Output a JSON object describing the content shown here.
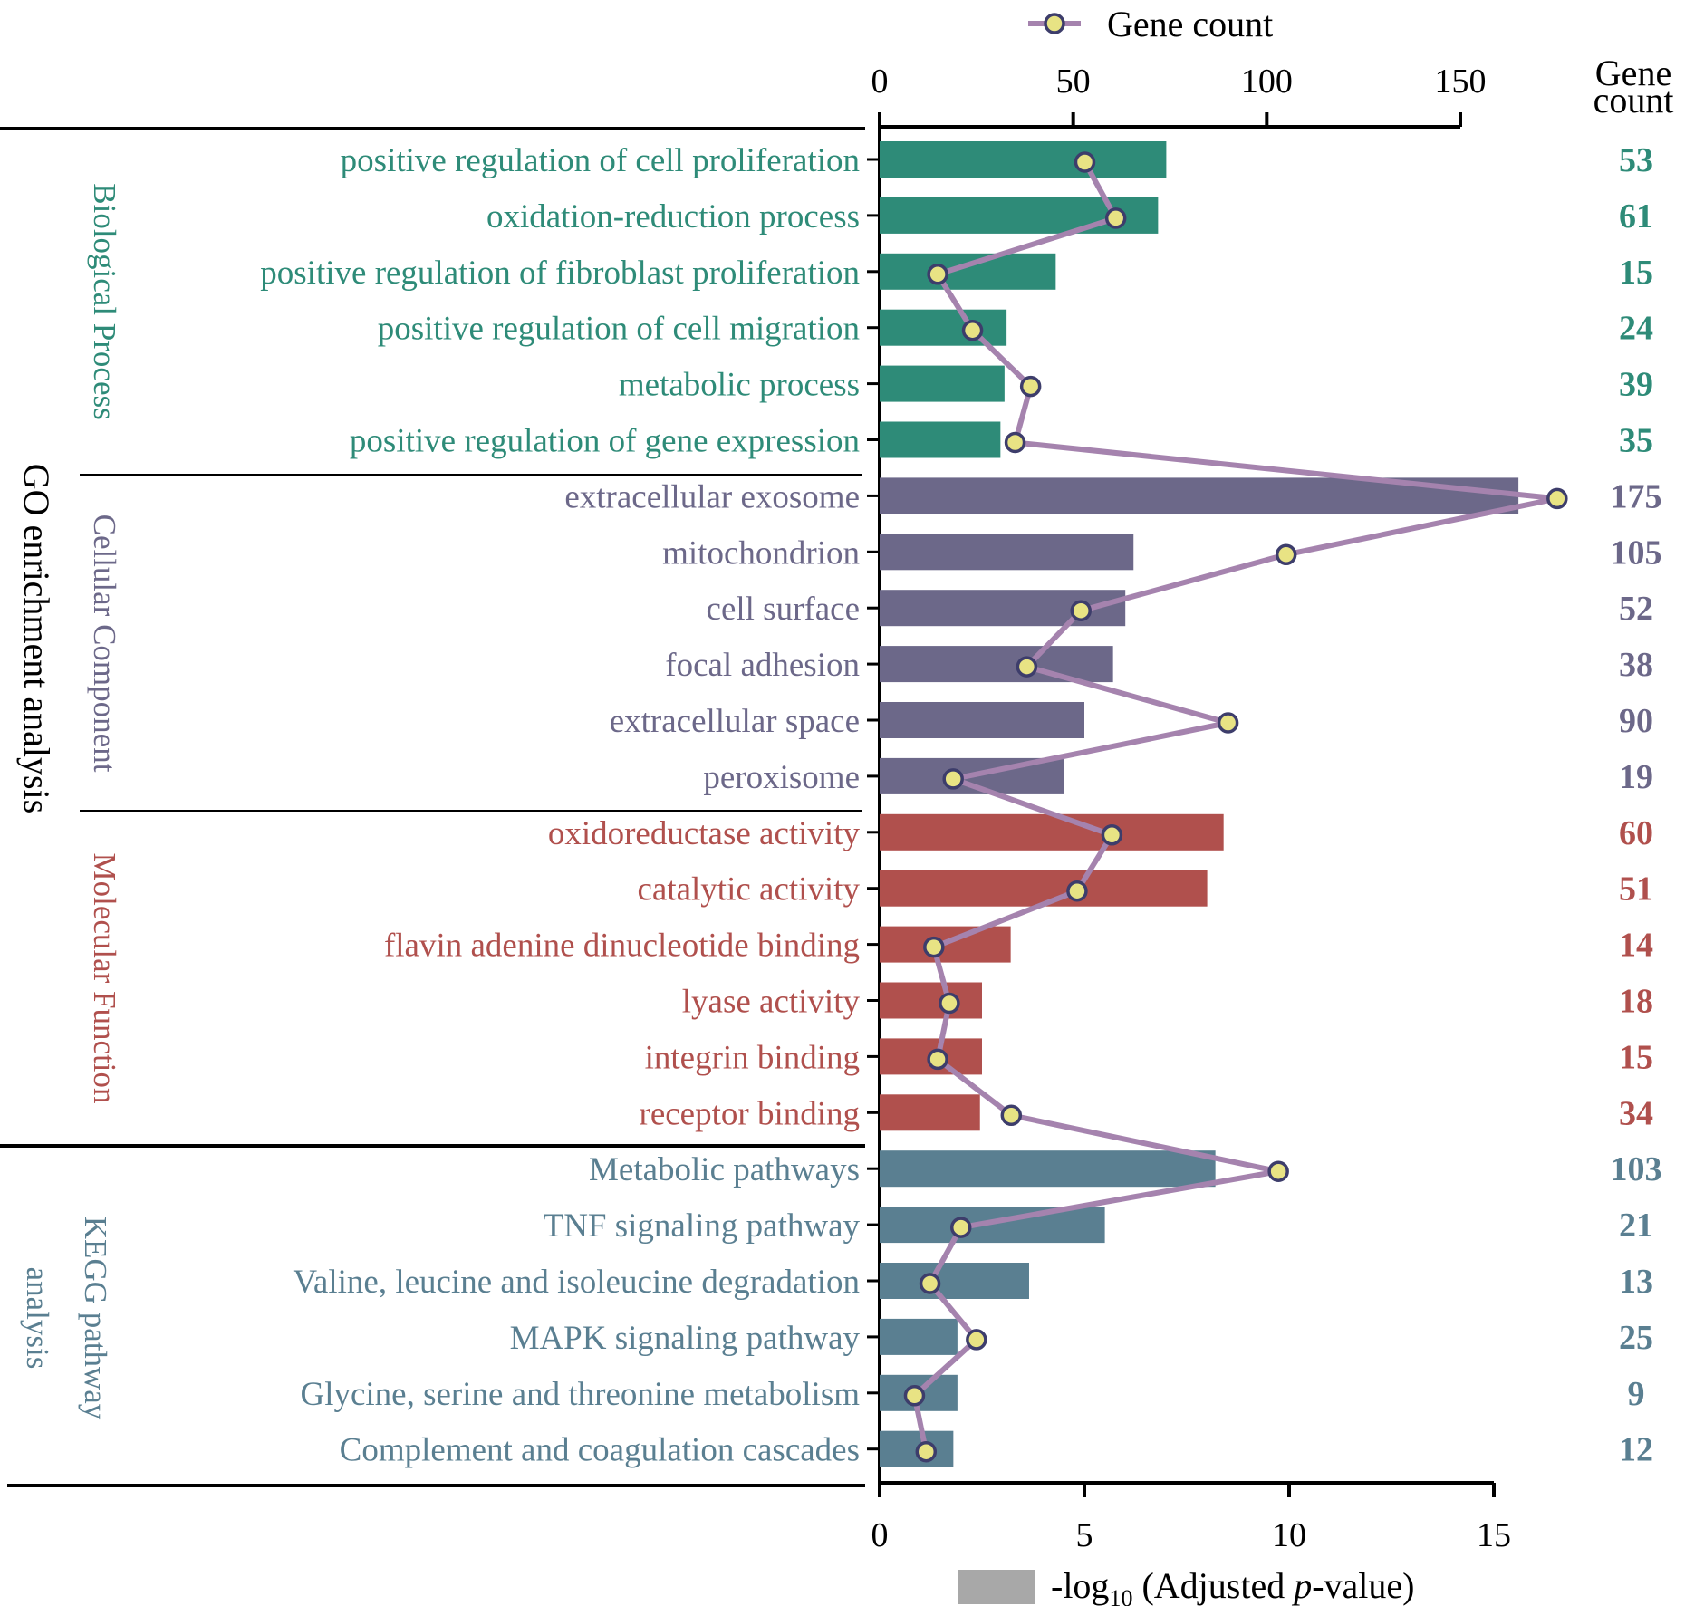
{
  "colors": {
    "bp": "#2e8b78",
    "cc": "#6c6889",
    "mf": "#b0504d",
    "kegg": "#5a7f91",
    "line": "#a583ae",
    "marker_fill": "#e8e384",
    "marker_stroke": "#3d3d6b",
    "legend_bar": "#a8a8a8"
  },
  "chart_data": {
    "type": "bar",
    "orientation": "horizontal",
    "legend_top": {
      "label": "Gene count",
      "marker": "circle-on-line"
    },
    "legend_bottom": {
      "label_pre": "-log",
      "label_sub": "10",
      "label_mid": " (Adjusted ",
      "label_italic": "p",
      "label_post": "-value)"
    },
    "count_header": [
      "Gene",
      "count"
    ],
    "top_axis": {
      "label": "Gene count",
      "range": [
        0,
        150
      ],
      "ticks": [
        "0",
        "50",
        "100",
        "150"
      ]
    },
    "bottom_axis": {
      "label": "-log10 (Adjusted p-value)",
      "range": [
        0,
        15
      ],
      "ticks": [
        "0",
        "5",
        "10",
        "15"
      ]
    },
    "outer_labels": {
      "go": "GO enrichment analysis",
      "kegg": [
        "KEGG pathway",
        "analysis"
      ]
    },
    "groups": [
      {
        "name": "Biological Process",
        "key": "bp",
        "terms": [
          {
            "term": "positive regulation of cell proliferation",
            "neglog10p": 7.0,
            "count": 53
          },
          {
            "term": "oxidation-reduction process",
            "neglog10p": 6.8,
            "count": 61
          },
          {
            "term": "positive regulation of fibroblast proliferation",
            "neglog10p": 4.3,
            "count": 15
          },
          {
            "term": "positive regulation of cell migration",
            "neglog10p": 3.1,
            "count": 24
          },
          {
            "term": "metabolic process",
            "neglog10p": 3.05,
            "count": 39
          },
          {
            "term": "positive regulation of gene expression",
            "neglog10p": 2.95,
            "count": 35
          }
        ]
      },
      {
        "name": "Cellular Component",
        "key": "cc",
        "terms": [
          {
            "term": "extracellular exosome",
            "neglog10p": 15.6,
            "count": 175
          },
          {
            "term": "mitochondrion",
            "neglog10p": 6.2,
            "count": 105
          },
          {
            "term": "cell surface",
            "neglog10p": 6.0,
            "count": 52
          },
          {
            "term": "focal adhesion",
            "neglog10p": 5.7,
            "count": 38
          },
          {
            "term": "extracellular space",
            "neglog10p": 5.0,
            "count": 90
          },
          {
            "term": "peroxisome",
            "neglog10p": 4.5,
            "count": 19
          }
        ]
      },
      {
        "name": "Molecular Function",
        "key": "mf",
        "terms": [
          {
            "term": "oxidoreductase activity",
            "neglog10p": 8.4,
            "count": 60
          },
          {
            "term": "catalytic activity",
            "neglog10p": 8.0,
            "count": 51
          },
          {
            "term": "flavin adenine dinucleotide binding",
            "neglog10p": 3.2,
            "count": 14
          },
          {
            "term": "lyase activity",
            "neglog10p": 2.5,
            "count": 18
          },
          {
            "term": "integrin binding",
            "neglog10p": 2.5,
            "count": 15
          },
          {
            "term": "receptor binding",
            "neglog10p": 2.45,
            "count": 34
          }
        ]
      },
      {
        "name": "KEGG",
        "key": "kegg",
        "terms": [
          {
            "term": "Metabolic pathways",
            "neglog10p": 8.2,
            "count": 103
          },
          {
            "term": "TNF signaling pathway",
            "neglog10p": 5.5,
            "count": 21
          },
          {
            "term": "Valine, leucine and isoleucine degradation",
            "neglog10p": 3.65,
            "count": 13
          },
          {
            "term": "MAPK signaling pathway",
            "neglog10p": 1.9,
            "count": 25
          },
          {
            "term": "Glycine, serine and threonine metabolism",
            "neglog10p": 1.9,
            "count": 9
          },
          {
            "term": "Complement and coagulation cascades",
            "neglog10p": 1.8,
            "count": 12
          }
        ]
      }
    ]
  }
}
